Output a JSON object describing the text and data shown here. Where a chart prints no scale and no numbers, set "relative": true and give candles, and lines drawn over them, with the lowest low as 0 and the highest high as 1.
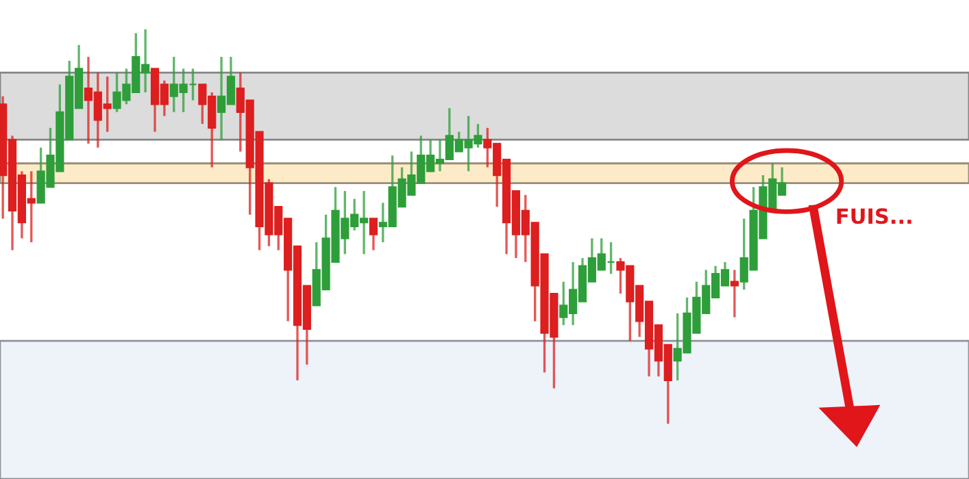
{
  "chart_data": {
    "type": "candlestick",
    "relative": true,
    "categories": [
      null,
      null,
      null,
      null,
      null,
      null,
      null,
      null,
      null,
      null,
      null,
      null,
      null,
      null,
      null,
      null,
      null,
      null,
      null,
      null,
      null,
      null,
      null,
      null,
      null,
      null,
      null,
      null,
      null,
      null,
      null,
      null,
      null,
      null,
      null,
      null,
      null,
      null,
      null,
      null,
      null,
      null,
      null,
      null,
      null,
      null,
      null,
      null,
      null,
      null,
      null,
      null,
      null,
      null,
      null,
      null,
      null,
      null,
      null,
      null,
      null,
      null,
      null,
      null,
      null,
      null,
      null,
      null,
      null,
      null,
      null,
      null,
      null,
      null,
      null,
      null,
      null,
      null,
      null,
      null,
      null,
      null,
      null
    ],
    "ohlc": [
      [
        0.81,
        0.83,
        0.52,
        0.63
      ],
      [
        0.72,
        0.73,
        0.44,
        0.54
      ],
      [
        0.63,
        0.64,
        0.47,
        0.51
      ],
      [
        0.57,
        0.64,
        0.46,
        0.56
      ],
      [
        0.56,
        0.7,
        0.56,
        0.64
      ],
      [
        0.6,
        0.75,
        0.6,
        0.68
      ],
      [
        0.64,
        0.86,
        0.64,
        0.79
      ],
      [
        0.72,
        0.92,
        0.72,
        0.88
      ],
      [
        0.8,
        0.96,
        0.8,
        0.9
      ],
      [
        0.85,
        0.93,
        0.71,
        0.82
      ],
      [
        0.84,
        0.89,
        0.7,
        0.77
      ],
      [
        0.81,
        0.88,
        0.74,
        0.8
      ],
      [
        0.8,
        0.89,
        0.79,
        0.84
      ],
      [
        0.82,
        0.9,
        0.81,
        0.86
      ],
      [
        0.84,
        0.99,
        0.84,
        0.93
      ],
      [
        0.89,
        1.0,
        0.84,
        0.91
      ],
      [
        0.9,
        0.9,
        0.74,
        0.81
      ],
      [
        0.86,
        0.87,
        0.78,
        0.81
      ],
      [
        0.83,
        0.93,
        0.79,
        0.86
      ],
      [
        0.84,
        0.9,
        0.79,
        0.86
      ],
      [
        0.86,
        0.9,
        0.82,
        0.86
      ],
      [
        0.86,
        0.86,
        0.76,
        0.81
      ],
      [
        0.83,
        0.84,
        0.65,
        0.75
      ],
      [
        0.79,
        0.93,
        0.72,
        0.83
      ],
      [
        0.81,
        0.93,
        0.81,
        0.88
      ],
      [
        0.85,
        0.89,
        0.69,
        0.79
      ],
      [
        0.82,
        0.82,
        0.53,
        0.65
      ],
      [
        0.74,
        0.74,
        0.44,
        0.5
      ],
      [
        0.61,
        0.62,
        0.45,
        0.48
      ],
      [
        0.55,
        0.55,
        0.44,
        0.48
      ],
      [
        0.52,
        0.52,
        0.26,
        0.39
      ],
      [
        0.45,
        0.45,
        0.11,
        0.25
      ],
      [
        0.35,
        0.35,
        0.15,
        0.24
      ],
      [
        0.3,
        0.46,
        0.3,
        0.39
      ],
      [
        0.34,
        0.53,
        0.34,
        0.47
      ],
      [
        0.41,
        0.6,
        0.41,
        0.54
      ],
      [
        0.47,
        0.59,
        0.43,
        0.52
      ],
      [
        0.5,
        0.57,
        0.49,
        0.53
      ],
      [
        0.51,
        0.59,
        0.43,
        0.52
      ],
      [
        0.52,
        0.52,
        0.44,
        0.48
      ],
      [
        0.5,
        0.56,
        0.46,
        0.51
      ],
      [
        0.5,
        0.68,
        0.5,
        0.6
      ],
      [
        0.55,
        0.65,
        0.55,
        0.62
      ],
      [
        0.58,
        0.69,
        0.58,
        0.63
      ],
      [
        0.61,
        0.73,
        0.61,
        0.68
      ],
      [
        0.64,
        0.72,
        0.64,
        0.68
      ],
      [
        0.66,
        0.72,
        0.64,
        0.67
      ],
      [
        0.67,
        0.8,
        0.67,
        0.73
      ],
      [
        0.69,
        0.74,
        0.69,
        0.72
      ],
      [
        0.7,
        0.78,
        0.64,
        0.72
      ],
      [
        0.71,
        0.76,
        0.7,
        0.73
      ],
      [
        0.72,
        0.75,
        0.65,
        0.7
      ],
      [
        0.71,
        0.71,
        0.55,
        0.63
      ],
      [
        0.67,
        0.67,
        0.43,
        0.51
      ],
      [
        0.59,
        0.59,
        0.42,
        0.48
      ],
      [
        0.54,
        0.58,
        0.41,
        0.48
      ],
      [
        0.51,
        0.51,
        0.26,
        0.35
      ],
      [
        0.43,
        0.43,
        0.13,
        0.23
      ],
      [
        0.33,
        0.33,
        0.09,
        0.22
      ],
      [
        0.27,
        0.36,
        0.25,
        0.3
      ],
      [
        0.28,
        0.41,
        0.25,
        0.34
      ],
      [
        0.31,
        0.42,
        0.31,
        0.4
      ],
      [
        0.36,
        0.47,
        0.36,
        0.42
      ],
      [
        0.39,
        0.47,
        0.39,
        0.43
      ],
      [
        0.41,
        0.46,
        0.38,
        0.41
      ],
      [
        0.41,
        0.42,
        0.33,
        0.39
      ],
      [
        0.4,
        0.4,
        0.21,
        0.31
      ],
      [
        0.35,
        0.35,
        0.22,
        0.26
      ],
      [
        0.31,
        0.31,
        0.12,
        0.19
      ],
      [
        0.25,
        0.25,
        0.12,
        0.16
      ],
      [
        0.2,
        0.2,
        0.0,
        0.11
      ],
      [
        0.16,
        0.28,
        0.11,
        0.19
      ],
      [
        0.18,
        0.32,
        0.18,
        0.28
      ],
      [
        0.23,
        0.36,
        0.23,
        0.32
      ],
      [
        0.28,
        0.39,
        0.28,
        0.35
      ],
      [
        0.32,
        0.4,
        0.32,
        0.38
      ],
      [
        0.35,
        0.41,
        0.35,
        0.39
      ],
      [
        0.36,
        0.39,
        0.27,
        0.35
      ],
      [
        0.36,
        0.52,
        0.34,
        0.42
      ],
      [
        0.39,
        0.6,
        0.39,
        0.54
      ],
      [
        0.47,
        0.63,
        0.47,
        0.6
      ],
      [
        0.54,
        0.66,
        0.54,
        0.62
      ],
      [
        0.58,
        0.65,
        0.58,
        0.61
      ]
    ],
    "colors": [
      "#dd1f1f",
      "#dd1f1f",
      "#dd1f1f",
      "#dd1f1f",
      "#2e9e3a",
      "#2e9e3a",
      "#2e9e3a",
      "#2e9e3a",
      "#2e9e3a",
      "#dd1f1f",
      "#dd1f1f",
      "#dd1f1f",
      "#2e9e3a",
      "#2e9e3a",
      "#2e9e3a",
      "#2e9e3a",
      "#dd1f1f",
      "#dd1f1f",
      "#2e9e3a",
      "#2e9e3a",
      "#2e9e3a",
      "#dd1f1f",
      "#dd1f1f",
      "#2e9e3a",
      "#2e9e3a",
      "#dd1f1f",
      "#dd1f1f",
      "#dd1f1f",
      "#dd1f1f",
      "#dd1f1f",
      "#dd1f1f",
      "#dd1f1f",
      "#dd1f1f",
      "#2e9e3a",
      "#2e9e3a",
      "#2e9e3a",
      "#2e9e3a",
      "#2e9e3a",
      "#2e9e3a",
      "#dd1f1f",
      "#2e9e3a",
      "#2e9e3a",
      "#2e9e3a",
      "#2e9e3a",
      "#2e9e3a",
      "#2e9e3a",
      "#2e9e3a",
      "#2e9e3a",
      "#2e9e3a",
      "#2e9e3a",
      "#2e9e3a",
      "#dd1f1f",
      "#dd1f1f",
      "#dd1f1f",
      "#dd1f1f",
      "#dd1f1f",
      "#dd1f1f",
      "#dd1f1f",
      "#dd1f1f",
      "#2e9e3a",
      "#2e9e3a",
      "#2e9e3a",
      "#2e9e3a",
      "#2e9e3a",
      "#2e9e3a",
      "#dd1f1f",
      "#dd1f1f",
      "#dd1f1f",
      "#dd1f1f",
      "#dd1f1f",
      "#dd1f1f",
      "#2e9e3a",
      "#2e9e3a",
      "#2e9e3a",
      "#2e9e3a",
      "#2e9e3a",
      "#2e9e3a",
      "#dd1f1f",
      "#2e9e3a",
      "#2e9e3a",
      "#2e9e3a",
      "#2e9e3a",
      "#2e9e3a"
    ],
    "bands": [
      {
        "axis": "y",
        "from": 0.72,
        "to": 0.89,
        "color": "#dcdcdc"
      },
      {
        "axis": "y",
        "from": 0.61,
        "to": 0.66,
        "color": "#fdebc8"
      },
      {
        "axis": "y",
        "from": -0.14,
        "to": 0.21,
        "color": "#eef3fa"
      }
    ],
    "annotations": [
      "FUIS..."
    ]
  }
}
